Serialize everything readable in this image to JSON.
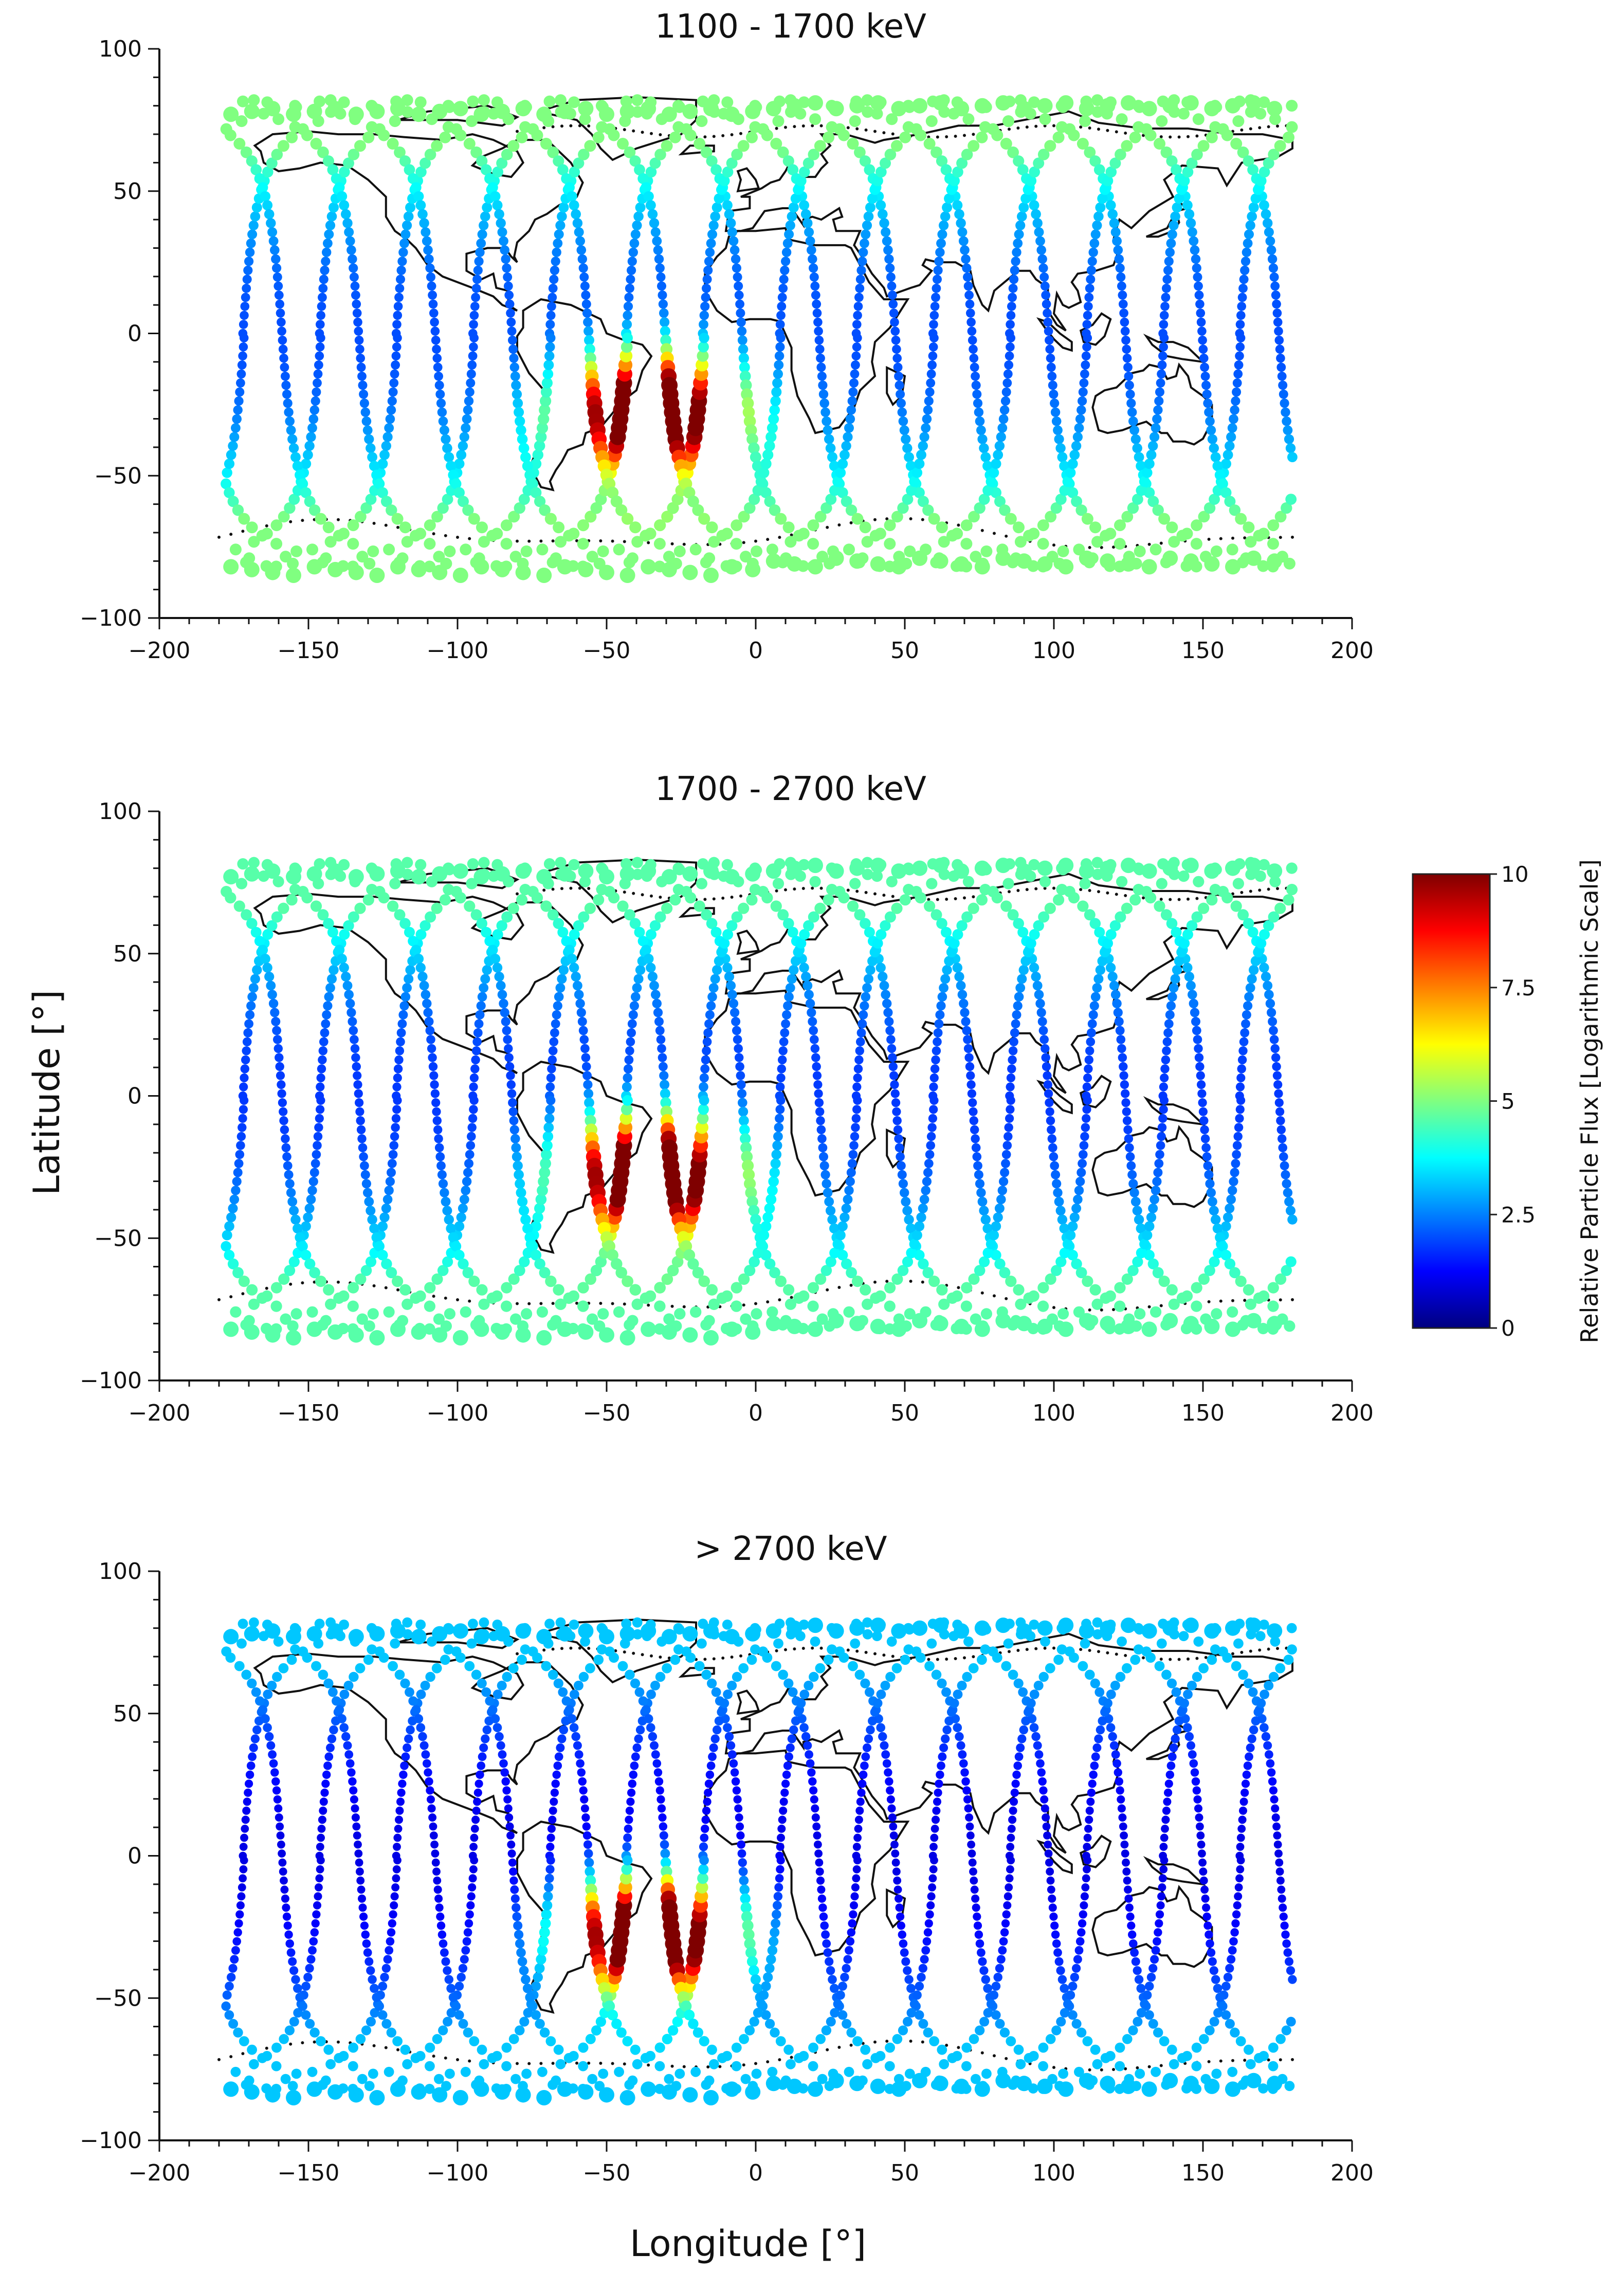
{
  "figure": {
    "ylabel": "Latitude [°]",
    "xlabel": "Longitude [°]"
  },
  "chart_data": [
    {
      "type": "scatter",
      "title": "1100 - 1700 keV",
      "xlim": [
        -200,
        200
      ],
      "ylim": [
        -100,
        100
      ],
      "xticks": [
        -200,
        -150,
        -100,
        -50,
        0,
        50,
        100,
        150,
        200
      ],
      "yticks": [
        -100,
        -50,
        0,
        50,
        100
      ],
      "xtick_labels": [
        "−200",
        "−150",
        "−100",
        "−50",
        "0",
        "50",
        "100",
        "150",
        "200"
      ],
      "ytick_labels": [
        "−100",
        "−50",
        "0",
        "50",
        "100"
      ],
      "grid": false,
      "background": "world-coastline-map",
      "series": [
        {
          "name": "Relative Particle Flux (orbit ground tracks)",
          "colorscale": "jet",
          "hotspot": {
            "longitude_range": [
              -60,
              0
            ],
            "latitude_range": [
              -50,
              -5
            ],
            "max_flux": 10
          },
          "typical_flux_high_latitude": 5,
          "typical_flux_equatorial": 2
        }
      ]
    },
    {
      "type": "scatter",
      "title": "1700 - 2700 keV",
      "xlim": [
        -200,
        200
      ],
      "ylim": [
        -100,
        100
      ],
      "xticks": [
        -200,
        -150,
        -100,
        -50,
        0,
        50,
        100,
        150,
        200
      ],
      "yticks": [
        -100,
        -50,
        0,
        50,
        100
      ],
      "xtick_labels": [
        "−200",
        "−150",
        "−100",
        "−50",
        "0",
        "50",
        "100",
        "150",
        "200"
      ],
      "ytick_labels": [
        "−100",
        "−50",
        "0",
        "50",
        "100"
      ],
      "grid": false,
      "background": "world-coastline-map",
      "series": [
        {
          "name": "Relative Particle Flux (orbit ground tracks)",
          "colorscale": "jet",
          "hotspot": {
            "longitude_range": [
              -60,
              0
            ],
            "latitude_range": [
              -50,
              -5
            ],
            "max_flux": 10
          },
          "typical_flux_high_latitude": 4.6,
          "typical_flux_equatorial": 1.8
        }
      ]
    },
    {
      "type": "scatter",
      "title": "> 2700 keV",
      "xlim": [
        -200,
        200
      ],
      "ylim": [
        -100,
        100
      ],
      "xticks": [
        -200,
        -150,
        -100,
        -50,
        0,
        50,
        100,
        150,
        200
      ],
      "yticks": [
        -100,
        -50,
        0,
        50,
        100
      ],
      "xtick_labels": [
        "−200",
        "−150",
        "−100",
        "−50",
        "0",
        "50",
        "100",
        "150",
        "200"
      ],
      "ytick_labels": [
        "−100",
        "−50",
        "0",
        "50",
        "100"
      ],
      "grid": false,
      "background": "world-coastline-map",
      "series": [
        {
          "name": "Relative Particle Flux (orbit ground tracks)",
          "colorscale": "jet",
          "hotspot": {
            "longitude_range": [
              -60,
              0
            ],
            "latitude_range": [
              -50,
              -5
            ],
            "max_flux": 10
          },
          "typical_flux_high_latitude": 3.2,
          "typical_flux_equatorial": 1
        }
      ]
    }
  ],
  "colorbar": {
    "label": "Relative Particle Flux [Logarithmic Scale]",
    "range": [
      0,
      10
    ],
    "ticks": [
      0,
      2.5,
      5,
      7.5,
      10
    ],
    "tick_labels": [
      "0",
      "2.5",
      "5",
      "7.5",
      "10"
    ],
    "colorscale": "jet",
    "stops": [
      "#00007f",
      "#0000ff",
      "#0080ff",
      "#00ffff",
      "#80ff80",
      "#ffff00",
      "#ff8000",
      "#ff0000",
      "#7f0000"
    ]
  }
}
